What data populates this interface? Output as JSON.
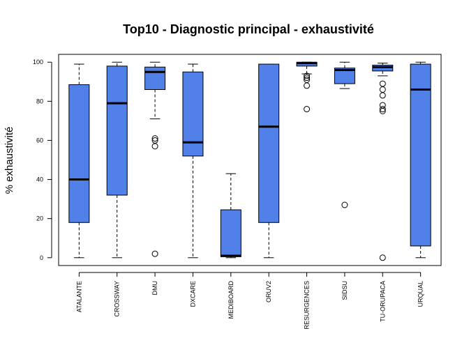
{
  "chart_data": {
    "type": "boxplot",
    "title": "Top10 - Diagnostic principal - exhaustivité",
    "xlabel": "",
    "ylabel": "% exhaustivité",
    "ylim": [
      -4,
      104
    ],
    "yticks": [
      0,
      20,
      40,
      60,
      80,
      100
    ],
    "grid": false,
    "legend": "none",
    "box_color": "#5080e8",
    "categories": [
      "ATALANTE",
      "CROSSWAY",
      "DMU",
      "DXCARE",
      "MEDIBOARD",
      "ORUV2",
      "RESURGENCES",
      "SIDSU",
      "TU-ORUPACA",
      "URQUAL"
    ],
    "boxes": [
      {
        "whisker_low": 0,
        "q1": 18,
        "median": 40,
        "q3": 88.5,
        "whisker_high": 99,
        "outliers": []
      },
      {
        "whisker_low": 0,
        "q1": 32,
        "median": 79,
        "q3": 98,
        "whisker_high": 100,
        "outliers": []
      },
      {
        "whisker_low": 71,
        "q1": 86,
        "median": 95,
        "q3": 97.5,
        "whisker_high": 100,
        "outliers": [
          61,
          60,
          57,
          2
        ]
      },
      {
        "whisker_low": 0,
        "q1": 52,
        "median": 59,
        "q3": 95,
        "whisker_high": 99,
        "outliers": []
      },
      {
        "whisker_low": 0,
        "q1": 0.5,
        "median": 1,
        "q3": 24.5,
        "whisker_high": 43,
        "outliers": []
      },
      {
        "whisker_low": 0,
        "q1": 18,
        "median": 67,
        "q3": 99,
        "whisker_high": 99,
        "outliers": []
      },
      {
        "whisker_low": 94,
        "q1": 98,
        "median": 99.5,
        "q3": 100,
        "whisker_high": 100,
        "outliers": [
          93,
          92,
          91,
          88,
          76
        ]
      },
      {
        "whisker_low": 86.5,
        "q1": 89,
        "median": 96,
        "q3": 97,
        "whisker_high": 100,
        "outliers": [
          27
        ]
      },
      {
        "whisker_low": 93,
        "q1": 95.5,
        "median": 97.5,
        "q3": 98.5,
        "whisker_high": 99.5,
        "outliers": [
          89,
          86,
          83,
          78,
          76,
          75,
          0
        ]
      },
      {
        "whisker_low": 0,
        "q1": 6,
        "median": 86,
        "q3": 99,
        "whisker_high": 100,
        "outliers": []
      }
    ]
  }
}
